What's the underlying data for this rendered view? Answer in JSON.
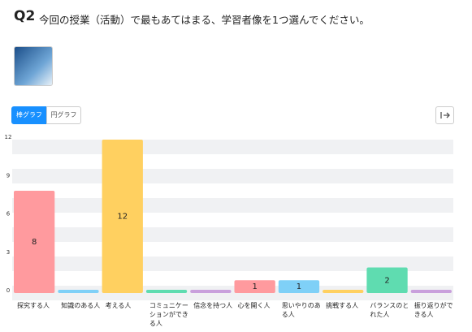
{
  "header": {
    "label": "Q2",
    "question": "今回の授業（活動）で最もあてはまる、学習者像を1つ選んでください。"
  },
  "buttons": {
    "bar": "棒グラフ",
    "pie": "円グラフ"
  },
  "chart_data": {
    "type": "bar",
    "categories": [
      "探究する人",
      "知識のある人",
      "考える人",
      "コミュニケーションができる人",
      "信念を持つ人",
      "心を開く人",
      "思いやりのある人",
      "挑戦する人",
      "バランスのとれた人",
      "振り返りができる人"
    ],
    "values": [
      8,
      0,
      12,
      0,
      0,
      1,
      1,
      0,
      2,
      0
    ],
    "colors": [
      "#ff9a9e",
      "#7fd0f7",
      "#ffd060",
      "#5fdcb0",
      "#c9a0dc",
      "#ff9a9e",
      "#7fd0f7",
      "#ffd060",
      "#5fdcb0",
      "#c9a0dc"
    ],
    "ylim": [
      0,
      12
    ],
    "yticks": [
      0,
      3,
      6,
      9,
      12
    ]
  }
}
